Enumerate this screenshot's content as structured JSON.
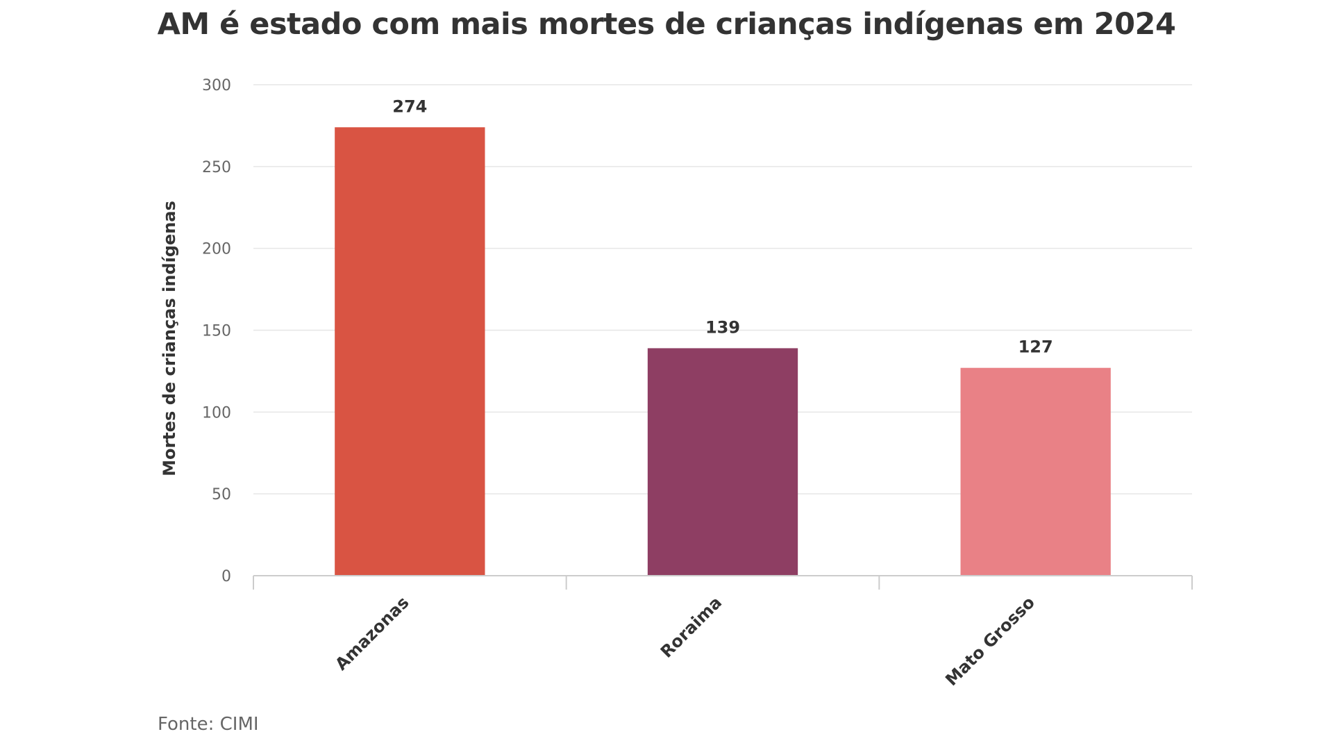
{
  "chart_data": {
    "type": "bar",
    "title": "AM é estado com mais mortes de crianças indígenas em 2024",
    "xlabel": "",
    "ylabel": "Mortes de crianças indígenas",
    "categories": [
      "Amazonas",
      "Roraima",
      "Mato Grosso"
    ],
    "values": [
      274,
      139,
      127
    ],
    "data_labels": [
      "274",
      "139",
      "127"
    ],
    "colors": [
      "#d95443",
      "#8e3e63",
      "#e98186"
    ],
    "ylim": [
      0,
      300
    ],
    "yticks": [
      0,
      50,
      100,
      150,
      200,
      250,
      300
    ],
    "ytick_labels": [
      "0",
      "50",
      "100",
      "150",
      "200",
      "250",
      "300"
    ],
    "grid": true,
    "legend": "none"
  },
  "source": "Fonte: CIMI"
}
